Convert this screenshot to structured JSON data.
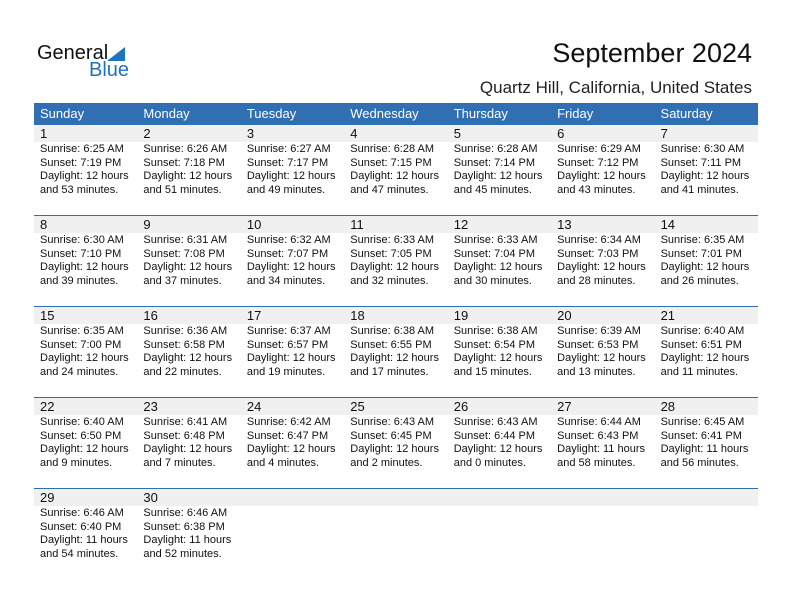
{
  "logo": {
    "text1": "General",
    "text2": "Blue"
  },
  "title": "September 2024",
  "location": "Quartz Hill, California, United States",
  "colors": {
    "header": "#2f6fb2",
    "band": "#f0f0f0",
    "brand": "#1e73be"
  },
  "weekdays": [
    "Sunday",
    "Monday",
    "Tuesday",
    "Wednesday",
    "Thursday",
    "Friday",
    "Saturday"
  ],
  "weeks": [
    [
      {
        "day": "1",
        "sunrise": "Sunrise: 6:25 AM",
        "sunset": "Sunset: 7:19 PM",
        "daylight1": "Daylight: 12 hours",
        "daylight2": "and 53 minutes."
      },
      {
        "day": "2",
        "sunrise": "Sunrise: 6:26 AM",
        "sunset": "Sunset: 7:18 PM",
        "daylight1": "Daylight: 12 hours",
        "daylight2": "and 51 minutes."
      },
      {
        "day": "3",
        "sunrise": "Sunrise: 6:27 AM",
        "sunset": "Sunset: 7:17 PM",
        "daylight1": "Daylight: 12 hours",
        "daylight2": "and 49 minutes."
      },
      {
        "day": "4",
        "sunrise": "Sunrise: 6:28 AM",
        "sunset": "Sunset: 7:15 PM",
        "daylight1": "Daylight: 12 hours",
        "daylight2": "and 47 minutes."
      },
      {
        "day": "5",
        "sunrise": "Sunrise: 6:28 AM",
        "sunset": "Sunset: 7:14 PM",
        "daylight1": "Daylight: 12 hours",
        "daylight2": "and 45 minutes."
      },
      {
        "day": "6",
        "sunrise": "Sunrise: 6:29 AM",
        "sunset": "Sunset: 7:12 PM",
        "daylight1": "Daylight: 12 hours",
        "daylight2": "and 43 minutes."
      },
      {
        "day": "7",
        "sunrise": "Sunrise: 6:30 AM",
        "sunset": "Sunset: 7:11 PM",
        "daylight1": "Daylight: 12 hours",
        "daylight2": "and 41 minutes."
      }
    ],
    [
      {
        "day": "8",
        "sunrise": "Sunrise: 6:30 AM",
        "sunset": "Sunset: 7:10 PM",
        "daylight1": "Daylight: 12 hours",
        "daylight2": "and 39 minutes."
      },
      {
        "day": "9",
        "sunrise": "Sunrise: 6:31 AM",
        "sunset": "Sunset: 7:08 PM",
        "daylight1": "Daylight: 12 hours",
        "daylight2": "and 37 minutes."
      },
      {
        "day": "10",
        "sunrise": "Sunrise: 6:32 AM",
        "sunset": "Sunset: 7:07 PM",
        "daylight1": "Daylight: 12 hours",
        "daylight2": "and 34 minutes."
      },
      {
        "day": "11",
        "sunrise": "Sunrise: 6:33 AM",
        "sunset": "Sunset: 7:05 PM",
        "daylight1": "Daylight: 12 hours",
        "daylight2": "and 32 minutes."
      },
      {
        "day": "12",
        "sunrise": "Sunrise: 6:33 AM",
        "sunset": "Sunset: 7:04 PM",
        "daylight1": "Daylight: 12 hours",
        "daylight2": "and 30 minutes."
      },
      {
        "day": "13",
        "sunrise": "Sunrise: 6:34 AM",
        "sunset": "Sunset: 7:03 PM",
        "daylight1": "Daylight: 12 hours",
        "daylight2": "and 28 minutes."
      },
      {
        "day": "14",
        "sunrise": "Sunrise: 6:35 AM",
        "sunset": "Sunset: 7:01 PM",
        "daylight1": "Daylight: 12 hours",
        "daylight2": "and 26 minutes."
      }
    ],
    [
      {
        "day": "15",
        "sunrise": "Sunrise: 6:35 AM",
        "sunset": "Sunset: 7:00 PM",
        "daylight1": "Daylight: 12 hours",
        "daylight2": "and 24 minutes."
      },
      {
        "day": "16",
        "sunrise": "Sunrise: 6:36 AM",
        "sunset": "Sunset: 6:58 PM",
        "daylight1": "Daylight: 12 hours",
        "daylight2": "and 22 minutes."
      },
      {
        "day": "17",
        "sunrise": "Sunrise: 6:37 AM",
        "sunset": "Sunset: 6:57 PM",
        "daylight1": "Daylight: 12 hours",
        "daylight2": "and 19 minutes."
      },
      {
        "day": "18",
        "sunrise": "Sunrise: 6:38 AM",
        "sunset": "Sunset: 6:55 PM",
        "daylight1": "Daylight: 12 hours",
        "daylight2": "and 17 minutes."
      },
      {
        "day": "19",
        "sunrise": "Sunrise: 6:38 AM",
        "sunset": "Sunset: 6:54 PM",
        "daylight1": "Daylight: 12 hours",
        "daylight2": "and 15 minutes."
      },
      {
        "day": "20",
        "sunrise": "Sunrise: 6:39 AM",
        "sunset": "Sunset: 6:53 PM",
        "daylight1": "Daylight: 12 hours",
        "daylight2": "and 13 minutes."
      },
      {
        "day": "21",
        "sunrise": "Sunrise: 6:40 AM",
        "sunset": "Sunset: 6:51 PM",
        "daylight1": "Daylight: 12 hours",
        "daylight2": "and 11 minutes."
      }
    ],
    [
      {
        "day": "22",
        "sunrise": "Sunrise: 6:40 AM",
        "sunset": "Sunset: 6:50 PM",
        "daylight1": "Daylight: 12 hours",
        "daylight2": "and 9 minutes."
      },
      {
        "day": "23",
        "sunrise": "Sunrise: 6:41 AM",
        "sunset": "Sunset: 6:48 PM",
        "daylight1": "Daylight: 12 hours",
        "daylight2": "and 7 minutes."
      },
      {
        "day": "24",
        "sunrise": "Sunrise: 6:42 AM",
        "sunset": "Sunset: 6:47 PM",
        "daylight1": "Daylight: 12 hours",
        "daylight2": "and 4 minutes."
      },
      {
        "day": "25",
        "sunrise": "Sunrise: 6:43 AM",
        "sunset": "Sunset: 6:45 PM",
        "daylight1": "Daylight: 12 hours",
        "daylight2": "and 2 minutes."
      },
      {
        "day": "26",
        "sunrise": "Sunrise: 6:43 AM",
        "sunset": "Sunset: 6:44 PM",
        "daylight1": "Daylight: 12 hours",
        "daylight2": "and 0 minutes."
      },
      {
        "day": "27",
        "sunrise": "Sunrise: 6:44 AM",
        "sunset": "Sunset: 6:43 PM",
        "daylight1": "Daylight: 11 hours",
        "daylight2": "and 58 minutes."
      },
      {
        "day": "28",
        "sunrise": "Sunrise: 6:45 AM",
        "sunset": "Sunset: 6:41 PM",
        "daylight1": "Daylight: 11 hours",
        "daylight2": "and 56 minutes."
      }
    ],
    [
      {
        "day": "29",
        "sunrise": "Sunrise: 6:46 AM",
        "sunset": "Sunset: 6:40 PM",
        "daylight1": "Daylight: 11 hours",
        "daylight2": "and 54 minutes."
      },
      {
        "day": "30",
        "sunrise": "Sunrise: 6:46 AM",
        "sunset": "Sunset: 6:38 PM",
        "daylight1": "Daylight: 11 hours",
        "daylight2": "and 52 minutes."
      }
    ]
  ]
}
